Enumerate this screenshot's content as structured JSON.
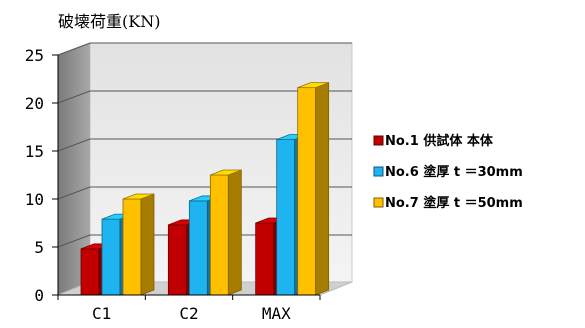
{
  "chart_data": {
    "type": "bar",
    "title": "破壊荷重(KN)",
    "xlabel": "",
    "ylabel": "",
    "categories": [
      "C1",
      "C2",
      "MAX"
    ],
    "series": [
      {
        "name": "No.1 供試体 本体",
        "values": [
          4.8,
          7.3,
          7.5
        ],
        "color": "#C00000"
      },
      {
        "name": "No.6 塗厚 t ＝30mm",
        "values": [
          7.9,
          9.8,
          16.2
        ],
        "color": "#1EB4F0"
      },
      {
        "name": "No.7 塗厚 t ＝50mm",
        "values": [
          10.0,
          12.5,
          21.6
        ],
        "color": "#FFC000"
      }
    ],
    "ylim": [
      0,
      25
    ],
    "yticks": [
      0,
      5,
      10,
      15,
      20,
      25
    ],
    "grid": true,
    "legend_position": "right"
  }
}
